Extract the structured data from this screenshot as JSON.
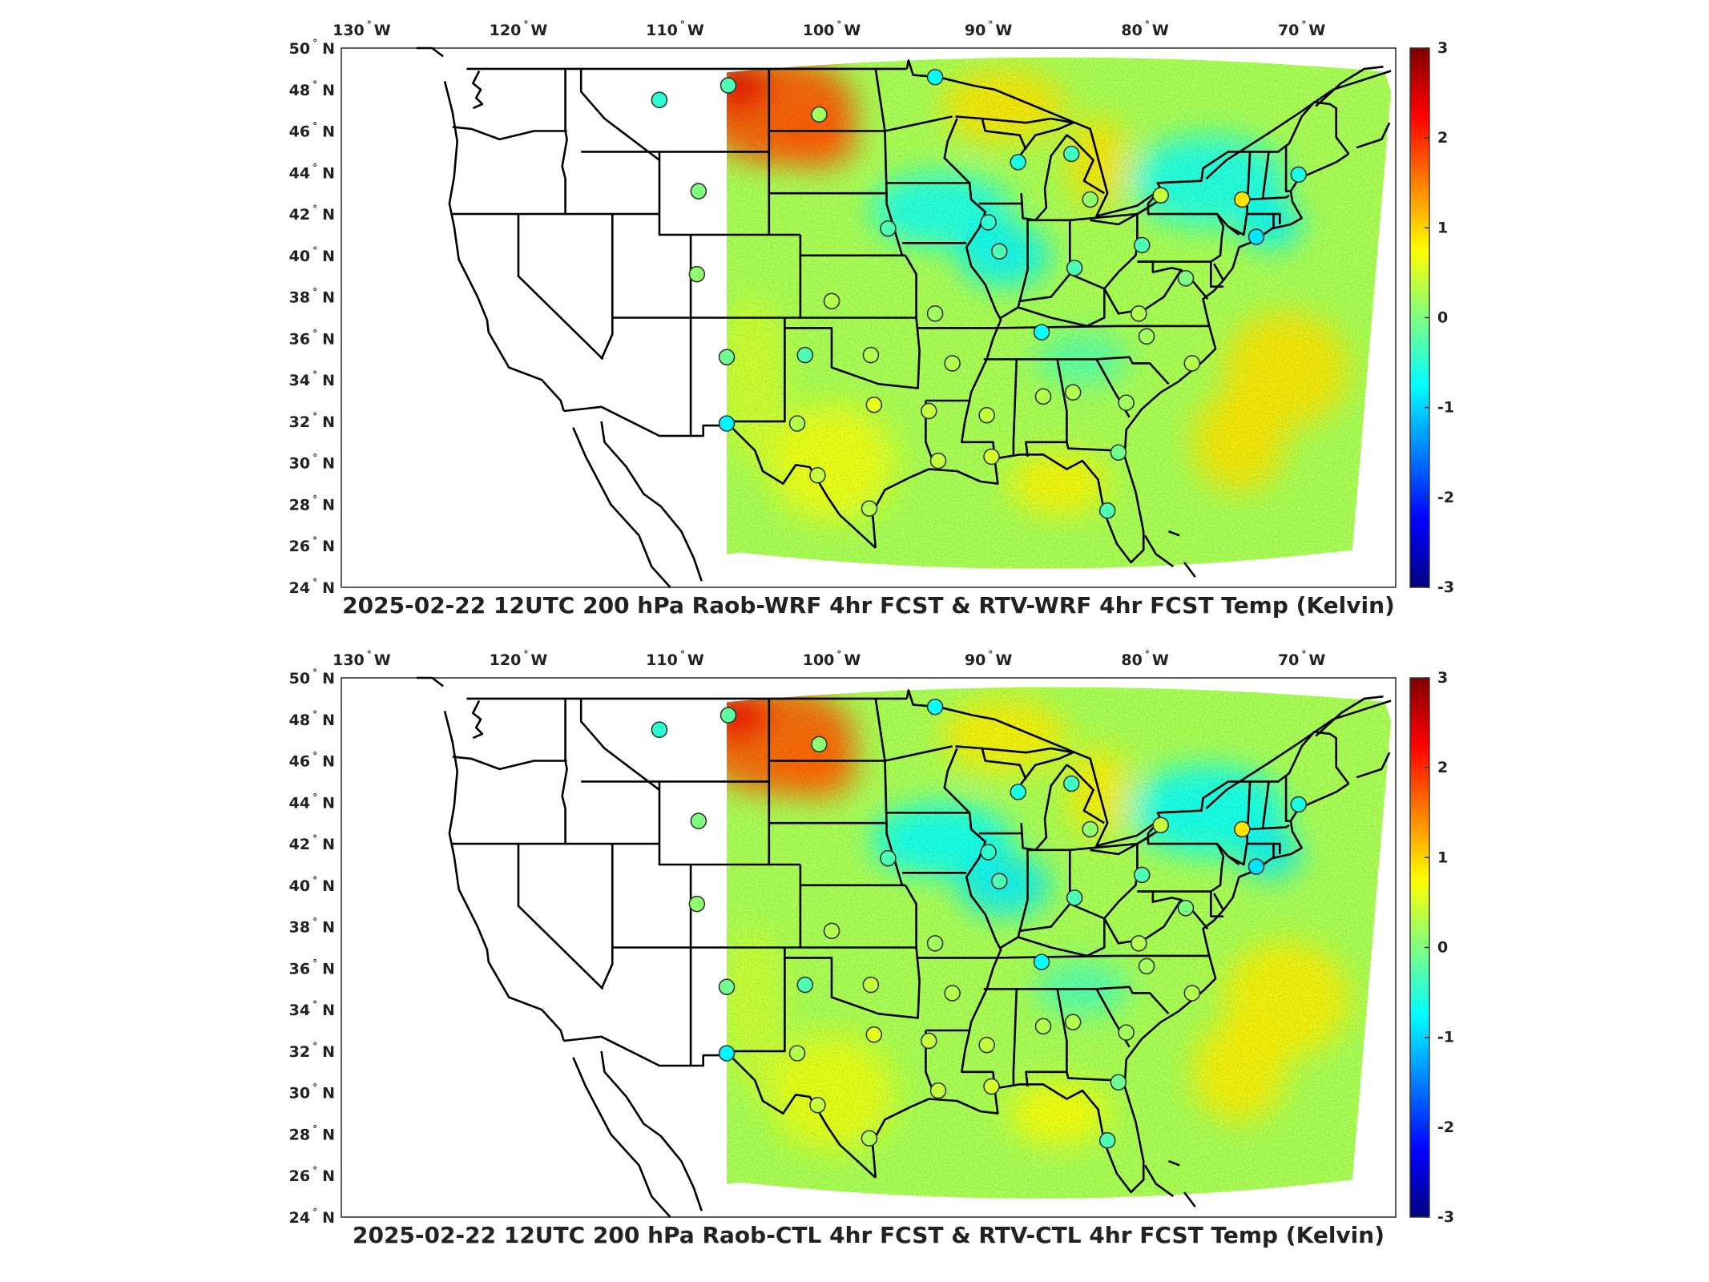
{
  "panels": [
    {
      "id": "wrf",
      "title": "2025-02-22 12UTC 200 hPa Raob-WRF 4hr FCST & RTV-WRF 4hr FCST Temp (Kelvin)"
    },
    {
      "id": "ctl",
      "title": "2025-02-22 12UTC 200 hPa Raob-CTL 4hr FCST & RTV-CTL 4hr FCST Temp (Kelvin)"
    }
  ],
  "lon_ticks": [
    {
      "value": -130,
      "num": "130",
      "hemi": "W"
    },
    {
      "value": -120,
      "num": "120",
      "hemi": "W"
    },
    {
      "value": -110,
      "num": "110",
      "hemi": "W"
    },
    {
      "value": -100,
      "num": "100",
      "hemi": "W"
    },
    {
      "value": -90,
      "num": "90",
      "hemi": "W"
    },
    {
      "value": -80,
      "num": "80",
      "hemi": "W"
    },
    {
      "value": -70,
      "num": "70",
      "hemi": "W"
    }
  ],
  "lat_ticks": [
    {
      "value": 50,
      "num": "50",
      "hemi": "N"
    },
    {
      "value": 48,
      "num": "48",
      "hemi": "N"
    },
    {
      "value": 46,
      "num": "46",
      "hemi": "N"
    },
    {
      "value": 44,
      "num": "44",
      "hemi": "N"
    },
    {
      "value": 42,
      "num": "42",
      "hemi": "N"
    },
    {
      "value": 40,
      "num": "40",
      "hemi": "N"
    },
    {
      "value": 38,
      "num": "38",
      "hemi": "N"
    },
    {
      "value": 36,
      "num": "36",
      "hemi": "N"
    },
    {
      "value": 34,
      "num": "34",
      "hemi": "N"
    },
    {
      "value": 32,
      "num": "32",
      "hemi": "N"
    },
    {
      "value": 30,
      "num": "30",
      "hemi": "N"
    },
    {
      "value": 28,
      "num": "28",
      "hemi": "N"
    },
    {
      "value": 26,
      "num": "26",
      "hemi": "N"
    },
    {
      "value": 24,
      "num": "24",
      "hemi": "N"
    }
  ],
  "colorbar": {
    "range": [
      -3,
      3
    ],
    "ticks": [
      "3",
      "2",
      "1",
      "0",
      "-1",
      "-2",
      "-3"
    ],
    "colormap": "jet",
    "colors": [
      "#00007f",
      "#0000ff",
      "#007fff",
      "#00ffff",
      "#7fff7f",
      "#ffff00",
      "#ff7f00",
      "#ff0000",
      "#7f0000"
    ]
  },
  "stations": [
    {
      "lon": -111.0,
      "lat": 47.5,
      "wrf": -0.5,
      "ctl": -0.5
    },
    {
      "lon": -106.6,
      "lat": 48.2,
      "wrf": -0.3,
      "ctl": -0.2
    },
    {
      "lon": -100.8,
      "lat": 46.8,
      "wrf": 0.2,
      "ctl": 0.1
    },
    {
      "lon": -93.4,
      "lat": 48.6,
      "wrf": -0.7,
      "ctl": -0.7
    },
    {
      "lon": -108.5,
      "lat": 43.1,
      "wrf": 0.0,
      "ctl": 0.0
    },
    {
      "lon": -88.1,
      "lat": 44.5,
      "wrf": -0.6,
      "ctl": -0.6
    },
    {
      "lon": -84.7,
      "lat": 44.9,
      "wrf": -0.4,
      "ctl": -0.4
    },
    {
      "lon": -83.5,
      "lat": 42.7,
      "wrf": 0.1,
      "ctl": 0.1
    },
    {
      "lon": -79.0,
      "lat": 42.9,
      "wrf": 0.4,
      "ctl": 0.4
    },
    {
      "lon": -73.8,
      "lat": 42.7,
      "wrf": 0.9,
      "ctl": 0.9
    },
    {
      "lon": -70.2,
      "lat": 43.9,
      "wrf": -0.6,
      "ctl": -0.6
    },
    {
      "lon": -108.6,
      "lat": 39.1,
      "wrf": 0.1,
      "ctl": 0.1
    },
    {
      "lon": -96.4,
      "lat": 41.3,
      "wrf": -0.3,
      "ctl": -0.3
    },
    {
      "lon": -90.0,
      "lat": 41.6,
      "wrf": -0.5,
      "ctl": -0.5
    },
    {
      "lon": -89.3,
      "lat": 40.2,
      "wrf": -0.3,
      "ctl": -0.3
    },
    {
      "lon": -80.2,
      "lat": 40.5,
      "wrf": -0.3,
      "ctl": -0.3
    },
    {
      "lon": -84.5,
      "lat": 39.4,
      "wrf": -0.3,
      "ctl": -0.3
    },
    {
      "lon": -72.9,
      "lat": 40.9,
      "wrf": -0.9,
      "ctl": -0.9
    },
    {
      "lon": -77.4,
      "lat": 38.9,
      "wrf": 0.0,
      "ctl": 0.0
    },
    {
      "lon": -100.0,
      "lat": 37.8,
      "wrf": 0.3,
      "ctl": 0.3
    },
    {
      "lon": -93.4,
      "lat": 37.2,
      "wrf": 0.2,
      "ctl": 0.2
    },
    {
      "lon": -86.6,
      "lat": 36.3,
      "wrf": -0.7,
      "ctl": -0.7
    },
    {
      "lon": -80.4,
      "lat": 37.2,
      "wrf": 0.3,
      "ctl": 0.3
    },
    {
      "lon": -79.9,
      "lat": 36.1,
      "wrf": 0.2,
      "ctl": 0.2
    },
    {
      "lon": -106.7,
      "lat": 35.1,
      "wrf": -0.1,
      "ctl": -0.1
    },
    {
      "lon": -101.7,
      "lat": 35.2,
      "wrf": -0.3,
      "ctl": -0.3
    },
    {
      "lon": -97.5,
      "lat": 35.2,
      "wrf": 0.3,
      "ctl": 0.4
    },
    {
      "lon": -92.3,
      "lat": 34.8,
      "wrf": 0.3,
      "ctl": 0.3
    },
    {
      "lon": -77.0,
      "lat": 34.8,
      "wrf": 0.3,
      "ctl": 0.3
    },
    {
      "lon": -106.7,
      "lat": 31.9,
      "wrf": -0.8,
      "ctl": -0.8
    },
    {
      "lon": -102.2,
      "lat": 31.9,
      "wrf": 0.3,
      "ctl": 0.3
    },
    {
      "lon": -97.3,
      "lat": 32.8,
      "wrf": 0.6,
      "ctl": 0.6
    },
    {
      "lon": -93.8,
      "lat": 32.5,
      "wrf": 0.4,
      "ctl": 0.4
    },
    {
      "lon": -90.1,
      "lat": 32.3,
      "wrf": 0.4,
      "ctl": 0.4
    },
    {
      "lon": -86.5,
      "lat": 33.2,
      "wrf": 0.3,
      "ctl": 0.3
    },
    {
      "lon": -84.6,
      "lat": 33.4,
      "wrf": 0.3,
      "ctl": 0.3
    },
    {
      "lon": -81.2,
      "lat": 32.9,
      "wrf": 0.2,
      "ctl": 0.2
    },
    {
      "lon": -100.9,
      "lat": 29.4,
      "wrf": 0.4,
      "ctl": 0.4
    },
    {
      "lon": -97.6,
      "lat": 27.8,
      "wrf": 0.3,
      "ctl": 0.3
    },
    {
      "lon": -93.2,
      "lat": 30.1,
      "wrf": 0.4,
      "ctl": 0.4
    },
    {
      "lon": -89.8,
      "lat": 30.3,
      "wrf": 0.5,
      "ctl": 0.5
    },
    {
      "lon": -81.7,
      "lat": 30.5,
      "wrf": -0.1,
      "ctl": -0.1
    },
    {
      "lon": -82.4,
      "lat": 27.7,
      "wrf": -0.3,
      "ctl": -0.3
    }
  ]
}
